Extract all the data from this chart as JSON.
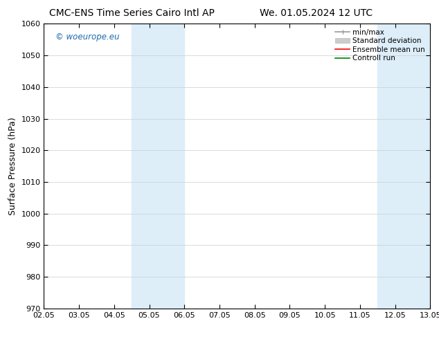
{
  "title_left": "CMC-ENS Time Series Cairo Intl AP",
  "title_right": "We. 01.05.2024 12 UTC",
  "ylabel": "Surface Pressure (hPa)",
  "ylim": [
    970,
    1060
  ],
  "yticks": [
    970,
    980,
    990,
    1000,
    1010,
    1020,
    1030,
    1040,
    1050,
    1060
  ],
  "x_tick_labels": [
    "02.05",
    "03.05",
    "04.05",
    "05.05",
    "06.05",
    "07.05",
    "08.05",
    "09.05",
    "10.05",
    "11.05",
    "12.05",
    "13.05"
  ],
  "x_tick_positions": [
    0,
    1,
    2,
    3,
    4,
    5,
    6,
    7,
    8,
    9,
    10,
    11
  ],
  "shaded_bands": [
    {
      "x_start": 2.5,
      "x_end": 3.0,
      "color": "#ddeef9"
    },
    {
      "x_start": 3.0,
      "x_end": 3.5,
      "color": "#ddeef9"
    },
    {
      "x_start": 9.5,
      "x_end": 10.0,
      "color": "#ddeef9"
    },
    {
      "x_start": 10.0,
      "x_end": 10.5,
      "color": "#ddeef9"
    }
  ],
  "band_pairs": [
    {
      "x_start": 2.5,
      "x_end": 4.0,
      "color": "#ddeef9"
    },
    {
      "x_start": 9.5,
      "x_end": 11.0,
      "color": "#ddeef9"
    }
  ],
  "watermark_text": "© woeurope.eu",
  "watermark_color": "#1a6aad",
  "legend_entries": [
    {
      "label": "min/max",
      "color": "#aaaaaa",
      "lw": 1.5
    },
    {
      "label": "Standard deviation",
      "color": "#cccccc",
      "lw": 6
    },
    {
      "label": "Ensemble mean run",
      "color": "red",
      "lw": 1.5
    },
    {
      "label": "Controll run",
      "color": "green",
      "lw": 1.5
    }
  ],
  "bg_color": "#ffffff",
  "plot_bg_color": "#ffffff",
  "border_color": "#000000",
  "title_fontsize": 10,
  "label_fontsize": 9,
  "tick_fontsize": 8
}
